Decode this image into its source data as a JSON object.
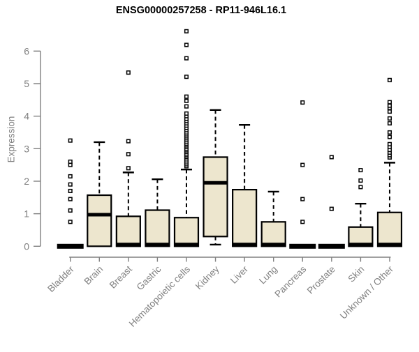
{
  "chart_data": {
    "type": "boxplot",
    "title": "ENSG00000257258 - RP11-946L16.1",
    "xlabel": "",
    "ylabel": "Expression",
    "ylim": [
      0,
      6.8
    ],
    "yticks": [
      0,
      1,
      2,
      3,
      4,
      5,
      6
    ],
    "grid": false,
    "legend": "none",
    "categories": [
      "Bladder",
      "Brain",
      "Breast",
      "Gastric",
      "Hematopoietic cells",
      "Kidney",
      "Liver",
      "Lung",
      "Pancreas",
      "Prostate",
      "Skin",
      "Unknown / Other"
    ],
    "boxes": [
      {
        "category": "Bladder",
        "q1": 0,
        "median": 0,
        "q3": 0,
        "whisker_low": 0,
        "whisker_high": 0,
        "outliers": [
          0.75,
          1.1,
          1.45,
          1.7,
          1.9,
          2.15,
          2.5,
          2.6,
          3.25
        ]
      },
      {
        "category": "Brain",
        "q1": 0,
        "median": 0.97,
        "q3": 1.57,
        "whisker_low": 0,
        "whisker_high": 3.2,
        "outliers": []
      },
      {
        "category": "Breast",
        "q1": 0,
        "median": 0.02,
        "q3": 0.92,
        "whisker_low": 0,
        "whisker_high": 2.27,
        "outliers": [
          2.4,
          2.83,
          3.23,
          5.34
        ]
      },
      {
        "category": "Gastric",
        "q1": 0,
        "median": 0.02,
        "q3": 1.11,
        "whisker_low": 0,
        "whisker_high": 2.06,
        "outliers": []
      },
      {
        "category": "Hematopoietic cells",
        "q1": 0,
        "median": 0.02,
        "q3": 0.88,
        "whisker_low": 0,
        "whisker_high": 2.36,
        "outliers": [
          2.46,
          2.52,
          2.58,
          2.64,
          2.7,
          2.75,
          2.8,
          2.85,
          2.9,
          2.95,
          3.0,
          3.05,
          3.1,
          3.15,
          3.2,
          3.26,
          3.32,
          3.38,
          3.44,
          3.5,
          3.57,
          3.64,
          3.71,
          3.78,
          3.85,
          3.92,
          4.0,
          4.08,
          4.3,
          4.47,
          4.6,
          5.21,
          5.78,
          6.19,
          6.61
        ]
      },
      {
        "category": "Kidney",
        "q1": 0.3,
        "median": 1.95,
        "q3": 2.74,
        "whisker_low": 0.05,
        "whisker_high": 4.19,
        "outliers": []
      },
      {
        "category": "Liver",
        "q1": 0,
        "median": 0.02,
        "q3": 1.74,
        "whisker_low": 0,
        "whisker_high": 3.73,
        "outliers": []
      },
      {
        "category": "Lung",
        "q1": 0,
        "median": 0.02,
        "q3": 0.75,
        "whisker_low": 0,
        "whisker_high": 1.68,
        "outliers": []
      },
      {
        "category": "Pancreas",
        "q1": 0,
        "median": 0,
        "q3": 0,
        "whisker_low": 0,
        "whisker_high": 0,
        "outliers": [
          0.75,
          1.45,
          2.5,
          4.42
        ]
      },
      {
        "category": "Prostate",
        "q1": 0,
        "median": 0,
        "q3": 0,
        "whisker_low": 0,
        "whisker_high": 0,
        "outliers": [
          1.15,
          2.74
        ]
      },
      {
        "category": "Skin",
        "q1": 0,
        "median": 0.02,
        "q3": 0.59,
        "whisker_low": 0,
        "whisker_high": 1.31,
        "outliers": [
          1.82,
          2.02,
          2.34
        ]
      },
      {
        "category": "Unknown / Other",
        "q1": 0,
        "median": 0.05,
        "q3": 1.04,
        "whisker_low": 0,
        "whisker_high": 2.57,
        "outliers": [
          2.73,
          2.8,
          2.88,
          2.96,
          3.05,
          3.14,
          3.36,
          3.5,
          3.78,
          3.93,
          4.14,
          4.25,
          4.32,
          4.43,
          5.11
        ]
      }
    ],
    "style": {
      "box_fill": "#EDE6CE",
      "line_color": "#000000",
      "axis_color": "#808080",
      "background": "#FFFFFF",
      "outlier_fill": "#FFFFFF"
    }
  }
}
